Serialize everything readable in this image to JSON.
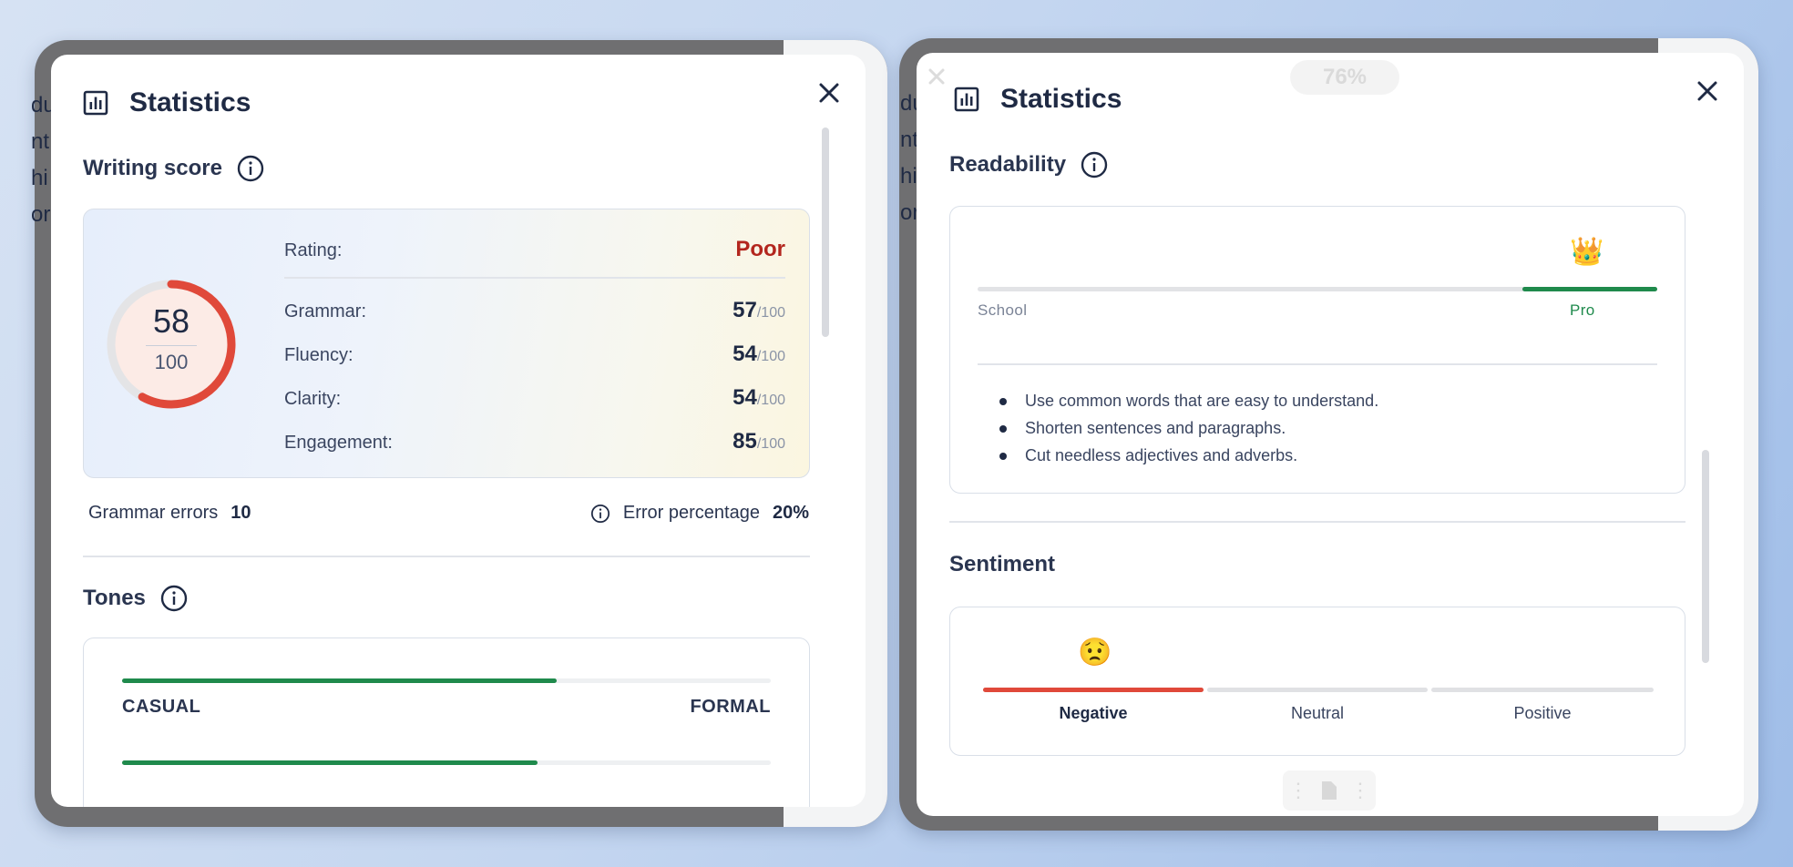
{
  "left_panel": {
    "title": "Statistics",
    "writing_score": {
      "heading": "Writing score",
      "score": "58",
      "max": "100",
      "score_fraction": 0.58,
      "rating_label": "Rating:",
      "rating_value": "Poor",
      "metrics": [
        {
          "label": "Grammar:",
          "value": "57",
          "max": "/100"
        },
        {
          "label": "Fluency:",
          "value": "54",
          "max": "/100"
        },
        {
          "label": "Clarity:",
          "value": "54",
          "max": "/100"
        },
        {
          "label": "Engagement:",
          "value": "85",
          "max": "/100"
        }
      ],
      "grammar_errors_label": "Grammar errors",
      "grammar_errors_value": "10",
      "error_pct_label": "Error percentage",
      "error_pct_value": "20%"
    },
    "tones": {
      "heading": "Tones",
      "scales": [
        {
          "left": "CASUAL",
          "right": "FORMAL",
          "fraction": 0.67
        },
        {
          "left": "",
          "right": "",
          "fraction": 0.64
        }
      ]
    }
  },
  "right_panel": {
    "title": "Statistics",
    "zoom": "76%",
    "readability": {
      "heading": "Readability",
      "levels": [
        "School",
        "Pro"
      ],
      "current": "Pro",
      "marker_emoji": "👑",
      "tips": [
        "Use common words that are easy to understand.",
        "Shorten sentences and paragraphs.",
        "Cut needless adjectives and adverbs."
      ]
    },
    "sentiment": {
      "heading": "Sentiment",
      "options": [
        "Negative",
        "Neutral",
        "Positive"
      ],
      "current": "Negative",
      "marker_emoji": "😟"
    }
  },
  "background_text": {
    "left_snips": [
      "du",
      "nt",
      "hi",
      "or"
    ],
    "right_snips": [
      "du",
      "nt",
      "hi",
      "or"
    ]
  },
  "colors": {
    "accent_green": "#1f8a4c",
    "poor_red": "#b3261e",
    "ring_red": "#e0493a",
    "navy": "#1f2a44"
  }
}
